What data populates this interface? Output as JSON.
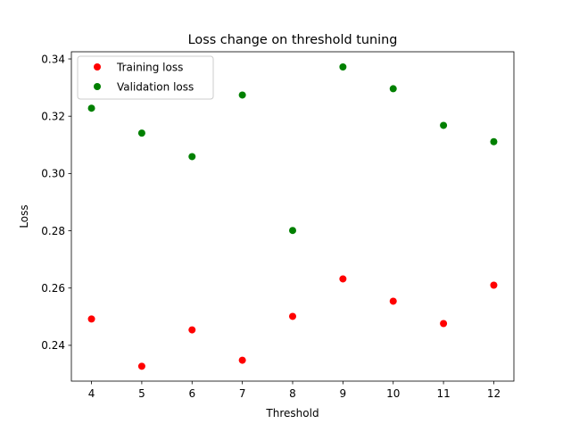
{
  "chart_data": {
    "type": "scatter",
    "title": "Loss change on threshold tuning",
    "xlabel": "Threshold",
    "ylabel": "Loss",
    "xlim": [
      3.6,
      12.4
    ],
    "ylim": [
      0.2275,
      0.3425
    ],
    "x_ticks": [
      4,
      5,
      6,
      7,
      8,
      9,
      10,
      11,
      12
    ],
    "y_ticks": [
      0.24,
      0.26,
      0.28,
      0.3,
      0.32,
      0.34
    ],
    "y_tick_labels": [
      "0.24",
      "0.26",
      "0.28",
      "0.30",
      "0.32",
      "0.34"
    ],
    "grid": false,
    "legend_position": "upper-left",
    "x": [
      4,
      5,
      6,
      7,
      8,
      9,
      10,
      11,
      12
    ],
    "series": [
      {
        "name": "Training loss",
        "color": "#ff0000",
        "values": [
          0.2492,
          0.2327,
          0.2454,
          0.2348,
          0.2501,
          0.2632,
          0.2554,
          0.2476,
          0.261
        ]
      },
      {
        "name": "Validation loss",
        "color": "#008000",
        "values": [
          0.3228,
          0.3141,
          0.3059,
          0.3274,
          0.2801,
          0.3372,
          0.3296,
          0.3168,
          0.3111
        ]
      }
    ]
  }
}
